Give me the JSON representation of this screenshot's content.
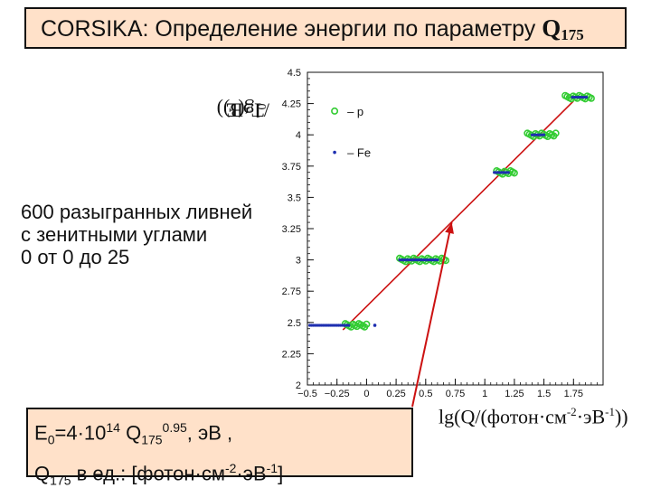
{
  "header": {
    "title_text": "CORSIKA: Определение энергии по параметру ",
    "title_q": "Q",
    "title_q_sub": "175"
  },
  "description": {
    "line1": "600 разыгранных ливней",
    "line2": "с зенитными углами",
    "line3": "0 от 0   до 25"
  },
  "formula": {
    "e_main": "E",
    "e_sub": "0",
    "e_eq": "=4·10",
    "e_pow": "14",
    "e_q": " Q",
    "e_qsub": "175",
    "e_exp": "0.95",
    "e_unit": ",  эВ ,",
    "q_main": "Q",
    "q_sub": "175",
    "q_text": "  в ед.: [фотон·см",
    "q_pow1": "-2",
    "q_mid": "·эВ",
    "q_pow2": "-1",
    "q_end": "]"
  },
  "chart_data": {
    "type": "scatter",
    "title": "",
    "xlabel_main": "lg(Q/(фотон·см",
    "xlabel_pow1": "-2",
    "xlabel_mid": "·эВ",
    "xlabel_pow2": "-1",
    "xlabel_end": "))",
    "ylabel_main": "lg(E",
    "ylabel_sub": "0",
    "ylabel_end": "/ТэВ))",
    "xlim": [
      -0.5,
      2.0
    ],
    "ylim": [
      2.0,
      4.5
    ],
    "x_ticks": [
      -0.5,
      -0.25,
      0,
      0.25,
      0.5,
      0.75,
      1,
      1.25,
      1.5,
      1.75
    ],
    "x_tick_labels": [
      "−0.5",
      "−0.25",
      "0",
      "0.25",
      "0.5",
      "0.75",
      "1",
      "1.25",
      "1.5",
      "1.75"
    ],
    "y_ticks": [
      2,
      2.25,
      2.5,
      2.75,
      3,
      3.25,
      3.5,
      3.75,
      4,
      4.25,
      4.5
    ],
    "y_tick_labels": [
      "2",
      "2.25",
      "2.5",
      "2.75",
      "3",
      "3.25",
      "3.5",
      "3.75",
      "4",
      "4.25",
      "4.5"
    ],
    "grid": false,
    "legend_position": "top-left",
    "series": [
      {
        "name": "p",
        "marker": "open-circle",
        "color": "#33cc33",
        "clusters": [
          {
            "y": 2.477,
            "x_min": -0.18,
            "x_max": 0.0
          },
          {
            "y": 3.0,
            "x_min": 0.28,
            "x_max": 0.67
          },
          {
            "y": 3.699,
            "x_min": 1.1,
            "x_max": 1.25
          },
          {
            "y": 4.0,
            "x_min": 1.36,
            "x_max": 1.6
          },
          {
            "y": 4.301,
            "x_min": 1.68,
            "x_max": 1.9
          }
        ]
      },
      {
        "name": "Fe",
        "marker": "dot",
        "color": "#1e2fb0",
        "clusters": [
          {
            "y": 2.477,
            "x_min": -0.48,
            "x_max": -0.15
          },
          {
            "y": 3.0,
            "x_min": 0.28,
            "x_max": 0.6
          },
          {
            "y": 3.699,
            "x_min": 1.08,
            "x_max": 1.2
          },
          {
            "y": 4.0,
            "x_min": 1.4,
            "x_max": 1.5
          },
          {
            "y": 4.301,
            "x_min": 1.74,
            "x_max": 1.86
          }
        ],
        "outliers": [
          {
            "x": 0.07,
            "y": 2.477
          }
        ]
      }
    ],
    "fit_line": {
      "color": "#cc1111",
      "points": [
        [
          -0.2,
          2.44
        ],
        [
          1.75,
          4.27
        ]
      ]
    },
    "annotation_arrow": {
      "color": "#cc1111",
      "target": [
        0.72,
        3.3
      ]
    }
  }
}
